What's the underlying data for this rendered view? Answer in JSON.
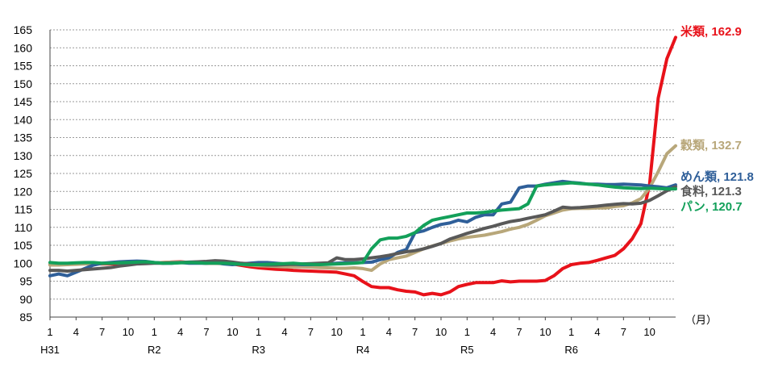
{
  "chart_data": {
    "type": "line",
    "ylim": [
      85,
      165
    ],
    "yticks": [
      85,
      90,
      95,
      100,
      105,
      110,
      115,
      120,
      125,
      130,
      135,
      140,
      145,
      150,
      155,
      160,
      165
    ],
    "x_unit": "（月）",
    "x_tick_labels": [
      "1",
      "4",
      "7",
      "10",
      "1",
      "4",
      "7",
      "10",
      "1",
      "4",
      "7",
      "10",
      "1",
      "4",
      "7",
      "10",
      "1",
      "4",
      "7",
      "10",
      "1",
      "4",
      "7",
      "10"
    ],
    "x_tick_positions": [
      1,
      4,
      7,
      10,
      13,
      16,
      19,
      22,
      25,
      28,
      31,
      34,
      37,
      40,
      43,
      46,
      49,
      52,
      55,
      58,
      61,
      64,
      67,
      70
    ],
    "era_labels": [
      {
        "label": "H31",
        "x": 1
      },
      {
        "label": "R2",
        "x": 13
      },
      {
        "label": "R3",
        "x": 25
      },
      {
        "label": "R4",
        "x": 37
      },
      {
        "label": "R5",
        "x": 49
      },
      {
        "label": "R6",
        "x": 61
      }
    ],
    "grid": true,
    "series": [
      {
        "name": "米類",
        "end_label": "米類, 162.9",
        "color": "#e8121a",
        "values": [
          99.6,
          99.6,
          99.7,
          99.8,
          99.9,
          99.9,
          99.8,
          99.8,
          99.9,
          100.0,
          100.1,
          100.2,
          100.1,
          100.2,
          100.3,
          100.4,
          100.2,
          100.1,
          100.0,
          100.0,
          99.9,
          99.8,
          99.4,
          99.0,
          98.7,
          98.5,
          98.3,
          98.2,
          98.0,
          97.9,
          97.8,
          97.7,
          97.6,
          97.5,
          97.0,
          96.5,
          94.9,
          93.5,
          93.2,
          93.2,
          92.6,
          92.2,
          92.0,
          91.2,
          91.6,
          91.2,
          92.0,
          93.5,
          94.1,
          94.6,
          94.6,
          94.6,
          95.1,
          94.8,
          95.0,
          95.0,
          95.0,
          95.2,
          96.5,
          98.5,
          99.6,
          100.0,
          100.2,
          100.8,
          101.5,
          102.2,
          104.0,
          106.8,
          111.0,
          122.0,
          146.0,
          157.0,
          162.9
        ]
      },
      {
        "name": "穀類",
        "end_label": "穀類, 132.7",
        "color": "#b8a77a",
        "values": [
          99.5,
          99.5,
          99.6,
          99.7,
          99.8,
          99.8,
          99.9,
          100.0,
          100.1,
          100.2,
          100.2,
          100.2,
          100.1,
          100.2,
          100.3,
          100.3,
          100.2,
          100.1,
          100.1,
          100.0,
          100.0,
          99.9,
          99.7,
          99.5,
          99.3,
          99.2,
          99.1,
          99.0,
          99.0,
          99.0,
          98.9,
          98.8,
          98.7,
          98.6,
          98.6,
          98.7,
          98.5,
          98.0,
          99.8,
          101.0,
          101.5,
          102.0,
          103.0,
          104.0,
          104.8,
          105.5,
          106.2,
          106.8,
          107.2,
          107.5,
          107.8,
          108.3,
          108.8,
          109.5,
          110.0,
          110.8,
          112.0,
          113.2,
          114.0,
          114.8,
          115.2,
          115.3,
          115.3,
          115.4,
          115.4,
          115.8,
          116.0,
          116.8,
          118.0,
          121.0,
          125.5,
          130.5,
          132.7
        ]
      },
      {
        "name": "めん類",
        "end_label": "めん類, 121.8",
        "color": "#2f5f99",
        "values": [
          96.5,
          97.0,
          96.5,
          97.5,
          98.5,
          99.5,
          100.0,
          100.2,
          100.4,
          100.5,
          100.6,
          100.5,
          100.2,
          100.0,
          100.0,
          100.2,
          100.0,
          100.0,
          100.0,
          100.2,
          99.8,
          99.6,
          99.8,
          100.0,
          100.2,
          100.2,
          100.0,
          99.8,
          99.7,
          99.6,
          99.6,
          99.7,
          99.8,
          100.0,
          100.1,
          100.1,
          100.2,
          100.3,
          101.0,
          101.5,
          103.0,
          103.8,
          108.5,
          109.0,
          110.0,
          110.8,
          111.2,
          112.0,
          111.5,
          112.8,
          113.5,
          113.5,
          116.5,
          117.0,
          121.0,
          121.5,
          121.5,
          122.0,
          122.4,
          122.8,
          122.5,
          122.3,
          122.0,
          122.0,
          121.9,
          121.9,
          122.0,
          121.9,
          121.8,
          121.5,
          121.3,
          121.0,
          121.8
        ]
      },
      {
        "name": "食料",
        "end_label": "食料, 121.3",
        "color": "#595959",
        "values": [
          98.0,
          98.0,
          97.8,
          98.0,
          98.2,
          98.4,
          98.6,
          98.8,
          99.2,
          99.5,
          99.8,
          99.9,
          100.0,
          100.0,
          100.1,
          100.2,
          100.3,
          100.4,
          100.5,
          100.7,
          100.6,
          100.3,
          100.0,
          99.8,
          99.6,
          99.5,
          99.5,
          99.6,
          99.7,
          99.8,
          99.9,
          100.0,
          100.1,
          101.5,
          101.0,
          101.0,
          101.2,
          101.5,
          101.8,
          102.2,
          102.7,
          103.2,
          103.5,
          104.0,
          104.7,
          105.5,
          106.7,
          107.5,
          108.3,
          109.0,
          109.7,
          110.3,
          111.0,
          111.6,
          112.0,
          112.5,
          113.0,
          113.5,
          114.5,
          115.6,
          115.4,
          115.5,
          115.7,
          115.9,
          116.2,
          116.4,
          116.6,
          116.5,
          116.7,
          117.5,
          118.8,
          120.2,
          121.3
        ]
      },
      {
        "name": "パン",
        "end_label": "パン, 120.7",
        "color": "#13a05a",
        "values": [
          100.2,
          100.0,
          100.0,
          100.1,
          100.2,
          100.2,
          100.0,
          100.0,
          100.1,
          100.2,
          100.3,
          100.4,
          100.2,
          100.0,
          100.0,
          100.1,
          100.2,
          100.1,
          100.0,
          100.0,
          100.0,
          99.9,
          99.7,
          99.6,
          99.6,
          99.7,
          99.8,
          99.9,
          100.0,
          99.8,
          99.7,
          99.6,
          99.7,
          99.8,
          99.9,
          100.0,
          100.2,
          104.0,
          106.5,
          107.0,
          107.0,
          107.5,
          108.5,
          110.5,
          112.0,
          112.5,
          113.0,
          113.5,
          114.0,
          114.0,
          114.2,
          114.5,
          114.8,
          115.0,
          115.2,
          116.5,
          121.5,
          121.8,
          122.0,
          122.2,
          122.4,
          122.2,
          122.0,
          121.8,
          121.5,
          121.2,
          121.0,
          120.9,
          120.8,
          120.9,
          120.8,
          120.7,
          120.7
        ]
      }
    ]
  }
}
